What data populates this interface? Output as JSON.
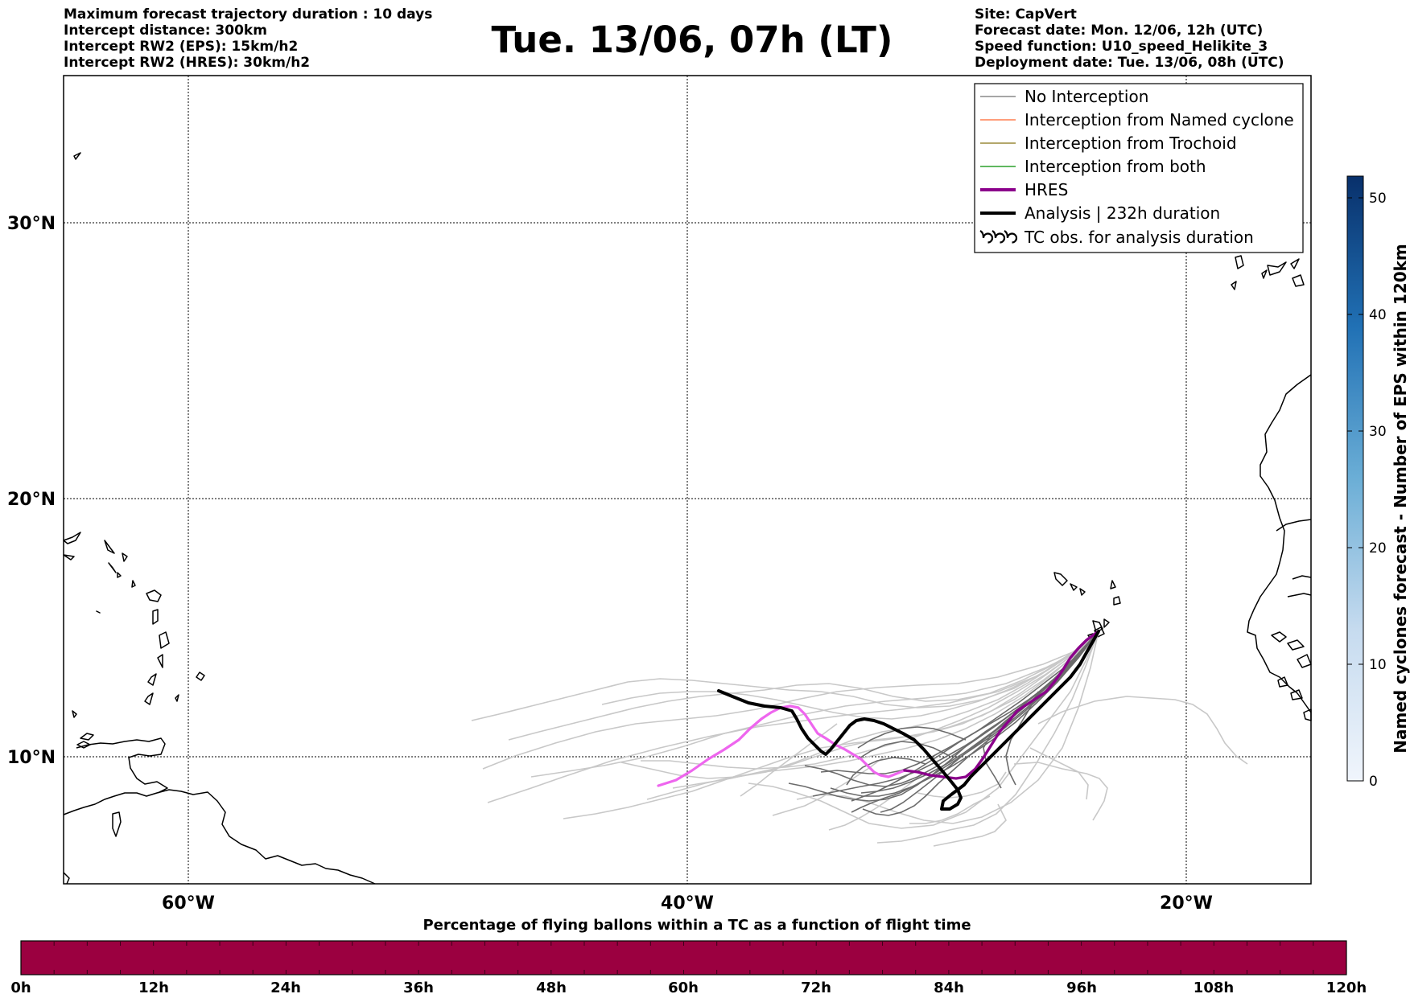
{
  "header_left": [
    "Maximum forecast trajectory duration : 10 days",
    "Intercept distance: 300km",
    "Intercept RW2 (EPS):  15km/h2",
    "Intercept RW2 (HRES): 30km/h2"
  ],
  "header_right": [
    "Site: CapVert",
    "Forecast date: Mon. 12/06, 12h (UTC)",
    "Speed function: U10_speed_Helikite_3",
    "Deployment date: Tue. 13/06, 08h (UTC)"
  ],
  "title": "Tue. 13/06, 07h (LT)",
  "map": {
    "lat_labels": [
      "30°N",
      "20°N",
      "10°N"
    ],
    "lon_labels": [
      "60°W",
      "40°W",
      "20°W"
    ]
  },
  "legend": [
    {
      "label": "No Interception",
      "color": "#888888",
      "style": "thin"
    },
    {
      "label": "Interception from Named cyclone",
      "color": "#ff7f50",
      "style": "thin"
    },
    {
      "label": "Interception from Trochoid",
      "color": "#9a8a3a",
      "style": "thin"
    },
    {
      "label": "Interception from both",
      "color": "#2ca02c",
      "style": "thin"
    },
    {
      "label": "HRES",
      "color": "#8b008b",
      "style": "thick"
    },
    {
      "label": "Analysis | 232h duration",
      "color": "#000000",
      "style": "thick"
    },
    {
      "label": "TC obs. for analysis duration",
      "color": "#000000",
      "style": "symbol"
    }
  ],
  "right_colorbar": {
    "title": "Named cyclones forecast - Number of EPS within 120km",
    "ticks": [
      "0",
      "10",
      "20",
      "30",
      "40",
      "50"
    ],
    "color_low": "#f0f5fc",
    "color_high": "#08306b"
  },
  "bottom_colorbar": {
    "title": "Percentage of flying ballons within a TC as a function of flight time",
    "ticks": [
      "0h",
      "12h",
      "24h",
      "36h",
      "48h",
      "60h",
      "72h",
      "84h",
      "96h",
      "108h",
      "120h"
    ],
    "fill_color": "#9b0040"
  },
  "colors": {
    "hres": "#8b008b",
    "hres_light": "#ee66ee",
    "analysis": "#000000",
    "eps_dark": "#6b6b6b",
    "eps_light": "#c8c8c8"
  }
}
